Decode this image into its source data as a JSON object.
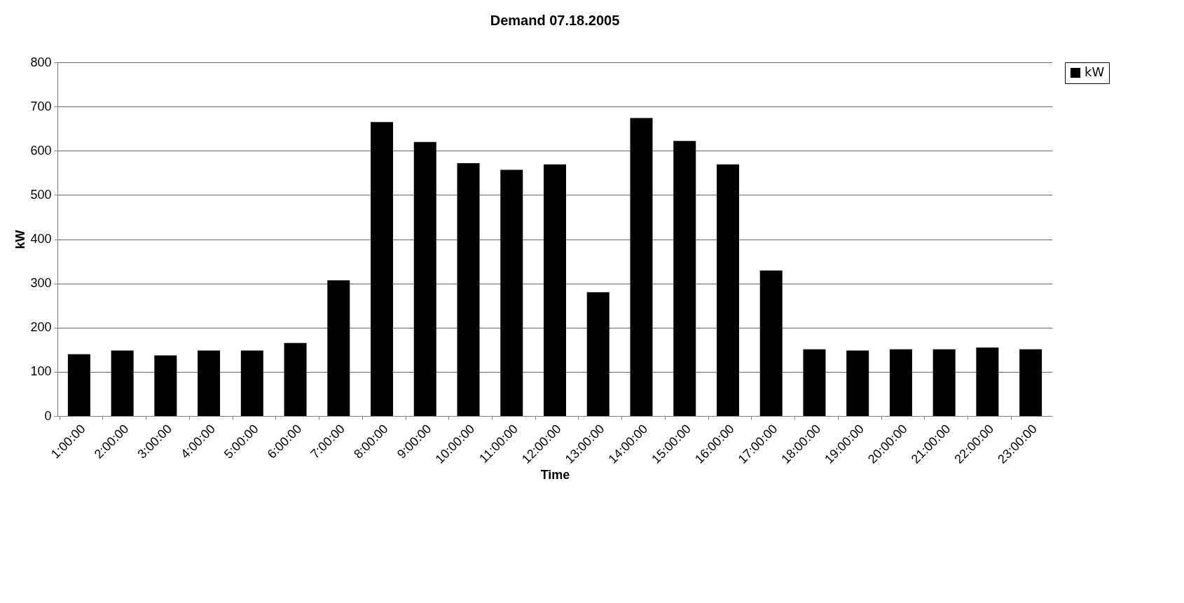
{
  "chart_data": {
    "type": "bar",
    "title": "Demand 07.18.2005",
    "xlabel": "Time",
    "ylabel": "kW",
    "categories": [
      "1:00:00",
      "2:00:00",
      "3:00:00",
      "4:00:00",
      "5:00:00",
      "6:00:00",
      "7:00:00",
      "8:00:00",
      "9:00:00",
      "10:00:00",
      "11:00:00",
      "12:00:00",
      "13:00:00",
      "14:00:00",
      "15:00:00",
      "16:00:00",
      "17:00:00",
      "18:00:00",
      "19:00:00",
      "20:00:00",
      "21:00:00",
      "22:00:00",
      "23:00:00"
    ],
    "series": [
      {
        "name": "kW",
        "color": "#000000",
        "values": [
          140,
          148,
          137,
          148,
          148,
          165,
          307,
          665,
          620,
          572,
          557,
          569,
          280,
          674,
          622,
          569,
          329,
          151,
          148,
          151,
          151,
          155,
          151
        ]
      }
    ],
    "ylim": [
      0,
      800
    ],
    "yticks": [
      0,
      100,
      200,
      300,
      400,
      500,
      600,
      700,
      800
    ],
    "grid": "y",
    "legend": "right"
  }
}
